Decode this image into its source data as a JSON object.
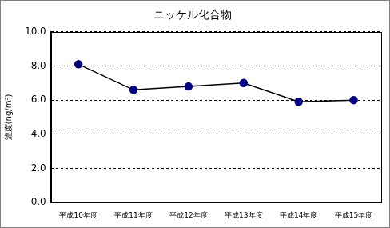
{
  "chart_data": {
    "type": "line",
    "title": "ニッケル化合物",
    "y_label": "濃度(ng/m³)",
    "categories": [
      "平成10年度",
      "平成11年度",
      "平成12年度",
      "平成13年度",
      "平成14年度",
      "平成15年度"
    ],
    "values": [
      8.1,
      6.6,
      6.8,
      7.0,
      5.9,
      6.0
    ],
    "color": "#000080",
    "marker": "circle",
    "ylim": [
      0,
      10
    ],
    "yticks": [
      {
        "value": 0,
        "label": "0.0"
      },
      {
        "value": 2,
        "label": "2.0"
      },
      {
        "value": 4,
        "label": "4.0"
      },
      {
        "value": 6,
        "label": "6.0"
      },
      {
        "value": 8,
        "label": "8.0"
      },
      {
        "value": 10,
        "label": "10.0"
      }
    ],
    "grid": true
  }
}
